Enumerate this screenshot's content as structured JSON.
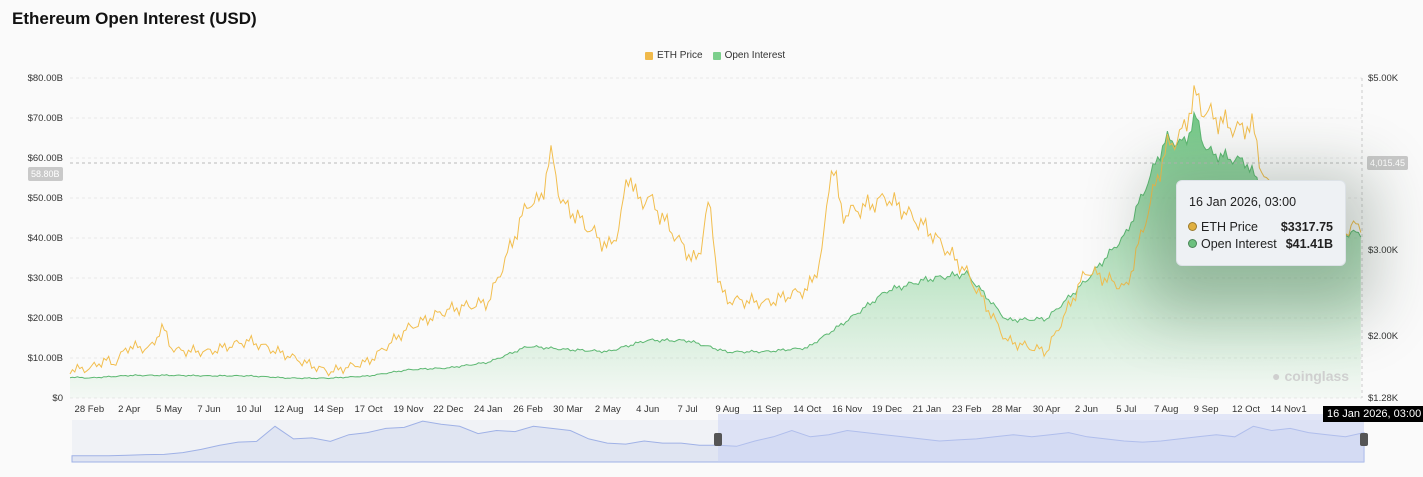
{
  "title": "Ethereum Open Interest (USD)",
  "legend": [
    {
      "label": "ETH Price",
      "color": "#f0b94a"
    },
    {
      "label": "Open Interest",
      "color": "#7ccf8c"
    }
  ],
  "crosshair": {
    "left_value": "58.80B",
    "right_value": "4,015.45",
    "x_label": "16 Jan 2026, 03:00"
  },
  "tooltip": {
    "title": "16 Jan 2026, 03:00",
    "rows": [
      {
        "label": "ETH Price",
        "value": "$3317.75",
        "color": "#e0b040"
      },
      {
        "label": "Open Interest",
        "value": "$41.41B",
        "color": "#6cc07e"
      }
    ]
  },
  "watermark": "coinglass",
  "chart_data": {
    "type": "line",
    "title": "Ethereum Open Interest (USD)",
    "left_axis": {
      "label": "Open Interest",
      "ticks": [
        "$0",
        "$10.00B",
        "$20.00B",
        "$30.00B",
        "$40.00B",
        "$50.00B",
        "$60.00B",
        "$70.00B",
        "$80.00B"
      ],
      "range": [
        0,
        80
      ]
    },
    "right_axis": {
      "label": "ETH Price",
      "ticks": [
        {
          "v": 5000,
          "t": "$5.00K"
        },
        {
          "v": 3000,
          "t": "$3.00K"
        },
        {
          "v": 2000,
          "t": "$2.00K"
        },
        {
          "v": 1280,
          "t": "$1.28K"
        }
      ],
      "range": [
        1280,
        5000
      ]
    },
    "x_ticks": [
      "28 Feb",
      "2 Apr",
      "5 May",
      "7 Jun",
      "10 Jul",
      "12 Aug",
      "14 Sep",
      "17 Oct",
      "19 Nov",
      "22 Dec",
      "24 Jan",
      "26 Feb",
      "30 Mar",
      "2 May",
      "4 Jun",
      "7 Jul",
      "9 Aug",
      "11 Sep",
      "14 Oct",
      "16 Nov",
      "19 Dec",
      "21 Jan",
      "23 Feb",
      "28 Mar",
      "30 Apr",
      "2 Jun",
      "5 Jul",
      "7 Aug",
      "9 Sep",
      "12 Oct",
      "14 Nov",
      "1"
    ],
    "x_days": [
      -16,
      0,
      33,
      66,
      99,
      132,
      165,
      198,
      231,
      264,
      297,
      330,
      363,
      396,
      429,
      462,
      495,
      528,
      561,
      594,
      627,
      660,
      693,
      726,
      759,
      792,
      825,
      858,
      891,
      924,
      957,
      990,
      1005,
      1020,
      1053
    ],
    "series": [
      {
        "name": "ETH Price",
        "unit": "USD",
        "values": [
          1600,
          1620,
          1900,
          1840,
          1800,
          1930,
          1780,
          1600,
          1700,
          2070,
          2300,
          2420,
          3580,
          3460,
          3000,
          3640,
          3000,
          2420,
          2360,
          2530,
          3460,
          3640,
          3230,
          2710,
          1950,
          1840,
          2770,
          2530,
          4160,
          4630,
          4400,
          3230,
          3060,
          3000,
          3318
        ]
      },
      {
        "name": "Open Interest",
        "unit": "USD B",
        "values": [
          5.2,
          5.0,
          5.7,
          5.7,
          5.5,
          5.5,
          5.0,
          5.0,
          5.5,
          7.0,
          7.5,
          9.0,
          13.0,
          12.0,
          11.5,
          14.5,
          14.5,
          11.5,
          11.5,
          12.5,
          19.5,
          27.0,
          29.5,
          30.8,
          19.5,
          20.0,
          29.5,
          40.8,
          64.5,
          62.0,
          59.5,
          42.0,
          40.8,
          39.5,
          41.41
        ]
      }
    ],
    "peaks": {
      "ETH Price": [
        {
          "day": 20,
          "v": 1700
        },
        {
          "day": 60,
          "v": 2100
        },
        {
          "day": 382,
          "v": 4070
        },
        {
          "day": 447,
          "v": 3860
        },
        {
          "day": 512,
          "v": 3520
        },
        {
          "day": 615,
          "v": 3990
        },
        {
          "day": 915,
          "v": 4800
        },
        {
          "day": 960,
          "v": 4500
        }
      ],
      "Open Interest": [
        {
          "day": 915,
          "v": 70
        }
      ]
    },
    "navigator": {
      "values": [
        3,
        3,
        3,
        3.2,
        3.5,
        3.6,
        4.5,
        6,
        8,
        9.5,
        9.8,
        17,
        11,
        11.5,
        9.8,
        13,
        14,
        16,
        16.5,
        19.5,
        18,
        17,
        13.5,
        15,
        14.5,
        17,
        16,
        15,
        11,
        9,
        8.5,
        10,
        9,
        9,
        8,
        8,
        7.5,
        10,
        12,
        15,
        12,
        13,
        15,
        14,
        13,
        12,
        11,
        10,
        10.5,
        11,
        12,
        13,
        12,
        13,
        14,
        12,
        11,
        10,
        9.5,
        10,
        11,
        12,
        13,
        12,
        17,
        15,
        16,
        14,
        13,
        12,
        14
      ],
      "selection": [
        0.5,
        1.0
      ]
    }
  }
}
